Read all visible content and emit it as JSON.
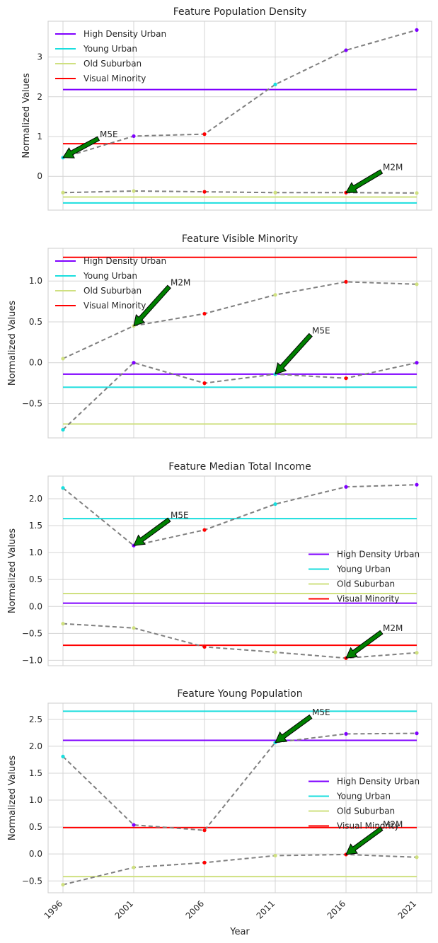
{
  "chart_data": [
    {
      "type": "line",
      "title": "Feature Population Density",
      "ylabel": "Normalized Values",
      "xlabel": "",
      "x": [
        1996,
        2001,
        2006,
        2011,
        2016,
        2021
      ],
      "ylim": [
        -0.85,
        3.9
      ],
      "yticks": [
        0,
        1,
        2,
        3
      ],
      "ytick_labels": [
        "0",
        "1",
        "2",
        "3"
      ],
      "legend_position": "top-left",
      "reference_lines": [
        {
          "name": "High Density Urban",
          "color": "#7f00ff",
          "value": 2.18
        },
        {
          "name": "Young Urban",
          "color": "#1adede",
          "value": -0.67
        },
        {
          "name": "Old Suburban",
          "color": "#cfe080",
          "value": -0.52
        },
        {
          "name": "Visual Minority",
          "color": "#ff0000",
          "value": 0.82
        }
      ],
      "series": [
        {
          "label": "M5E",
          "values": [
            0.47,
            1.01,
            1.06,
            2.31,
            3.17,
            3.68
          ],
          "point_colors": [
            "#1adede",
            "#7f00ff",
            "#ff0000",
            "#1adede",
            "#7f00ff",
            "#7f00ff"
          ]
        },
        {
          "label": "M2M",
          "values": [
            -0.41,
            -0.37,
            -0.39,
            -0.41,
            -0.41,
            -0.42
          ],
          "point_colors": [
            "#cfe080",
            "#cfe080",
            "#ff0000",
            "#cfe080",
            "#ff0000",
            "#cfe080"
          ]
        }
      ],
      "annotations": [
        {
          "text": "M5E",
          "x": 1996,
          "y": 0.47,
          "text_x": 1998.5,
          "text_y": 0.95
        },
        {
          "text": "M2M",
          "x": 2016,
          "y": -0.41,
          "text_x": 2018.5,
          "text_y": 0.12
        }
      ]
    },
    {
      "type": "line",
      "title": "Feature Visible Minority",
      "ylabel": "Normalized Values",
      "xlabel": "",
      "x": [
        1996,
        2001,
        2006,
        2011,
        2016,
        2021
      ],
      "ylim": [
        -0.92,
        1.4
      ],
      "yticks": [
        -0.5,
        0.0,
        0.5,
        1.0
      ],
      "ytick_labels": [
        "−0.5",
        "0.0",
        "0.5",
        "1.0"
      ],
      "legend_position": "top-left",
      "reference_lines": [
        {
          "name": "High Density Urban",
          "color": "#7f00ff",
          "value": -0.14
        },
        {
          "name": "Young Urban",
          "color": "#1adede",
          "value": -0.3
        },
        {
          "name": "Old Suburban",
          "color": "#cfe080",
          "value": -0.75
        },
        {
          "name": "Visual Minority",
          "color": "#ff0000",
          "value": 1.29
        }
      ],
      "series": [
        {
          "label": "M2M",
          "values": [
            0.05,
            0.45,
            0.6,
            0.83,
            0.99,
            0.96
          ],
          "point_colors": [
            "#cfe080",
            "#cfe080",
            "#ff0000",
            "#cfe080",
            "#ff0000",
            "#cfe080"
          ]
        },
        {
          "label": "M5E",
          "values": [
            -0.82,
            0.0,
            -0.25,
            -0.14,
            -0.19,
            0.0
          ],
          "point_colors": [
            "#1adede",
            "#7f00ff",
            "#ff0000",
            "#1adede",
            "#ff0000",
            "#7f00ff"
          ]
        }
      ],
      "annotations": [
        {
          "text": "M2M",
          "x": 2001,
          "y": 0.45,
          "text_x": 2003.5,
          "text_y": 0.93
        },
        {
          "text": "M5E",
          "x": 2011,
          "y": -0.14,
          "text_x": 2013.5,
          "text_y": 0.34
        }
      ]
    },
    {
      "type": "line",
      "title": "Feature Median Total Income",
      "ylabel": "Normalized Values",
      "xlabel": "",
      "x": [
        1996,
        2001,
        2006,
        2011,
        2016,
        2021
      ],
      "ylim": [
        -1.1,
        2.42
      ],
      "yticks": [
        -1.0,
        -0.5,
        0.0,
        0.5,
        1.0,
        1.5,
        2.0
      ],
      "ytick_labels": [
        "−1.0",
        "−0.5",
        "0.0",
        "0.5",
        "1.0",
        "1.5",
        "2.0"
      ],
      "legend_position": "center-right",
      "reference_lines": [
        {
          "name": "High Density Urban",
          "color": "#7f00ff",
          "value": 0.06
        },
        {
          "name": "Young Urban",
          "color": "#1adede",
          "value": 1.63
        },
        {
          "name": "Old Suburban",
          "color": "#cfe080",
          "value": 0.24
        },
        {
          "name": "Visual Minority",
          "color": "#ff0000",
          "value": -0.72
        }
      ],
      "series": [
        {
          "label": "M5E",
          "values": [
            2.2,
            1.13,
            1.42,
            1.9,
            2.22,
            2.26
          ],
          "point_colors": [
            "#1adede",
            "#7f00ff",
            "#ff0000",
            "#1adede",
            "#7f00ff",
            "#7f00ff"
          ]
        },
        {
          "label": "M2M",
          "values": [
            -0.32,
            -0.4,
            -0.75,
            -0.85,
            -0.96,
            -0.86
          ],
          "point_colors": [
            "#cfe080",
            "#cfe080",
            "#ff0000",
            "#cfe080",
            "#ff0000",
            "#cfe080"
          ]
        }
      ],
      "annotations": [
        {
          "text": "M5E",
          "x": 2001,
          "y": 1.13,
          "text_x": 2003.5,
          "text_y": 1.61
        },
        {
          "text": "M2M",
          "x": 2016,
          "y": -0.96,
          "text_x": 2018.5,
          "text_y": -0.48
        }
      ]
    },
    {
      "type": "line",
      "title": "Feature Young Population",
      "ylabel": "Normalized Values",
      "xlabel": "Year",
      "x": [
        1996,
        2001,
        2006,
        2011,
        2016,
        2021
      ],
      "xtick_labels": [
        "1996",
        "2001",
        "2006",
        "2011",
        "2016",
        "2021"
      ],
      "ylim": [
        -0.72,
        2.8
      ],
      "yticks": [
        -0.5,
        0.0,
        0.5,
        1.0,
        1.5,
        2.0,
        2.5
      ],
      "ytick_labels": [
        "−0.5",
        "0.0",
        "0.5",
        "1.0",
        "1.5",
        "2.0",
        "2.5"
      ],
      "legend_position": "center-right",
      "reference_lines": [
        {
          "name": "High Density Urban",
          "color": "#7f00ff",
          "value": 2.11
        },
        {
          "name": "Young Urban",
          "color": "#1adede",
          "value": 2.65
        },
        {
          "name": "Old Suburban",
          "color": "#cfe080",
          "value": -0.42
        },
        {
          "name": "Visual Minority",
          "color": "#ff0000",
          "value": 0.49
        }
      ],
      "series": [
        {
          "label": "M5E",
          "values": [
            1.81,
            0.54,
            0.44,
            2.07,
            2.23,
            2.24
          ],
          "point_colors": [
            "#1adede",
            "#7f00ff",
            "#ff0000",
            "#1adede",
            "#7f00ff",
            "#7f00ff"
          ]
        },
        {
          "label": "M2M",
          "values": [
            -0.57,
            -0.25,
            -0.16,
            -0.03,
            -0.01,
            -0.06
          ],
          "point_colors": [
            "#cfe080",
            "#cfe080",
            "#ff0000",
            "#cfe080",
            "#ff0000",
            "#cfe080"
          ]
        }
      ],
      "annotations": [
        {
          "text": "M5E",
          "x": 2011,
          "y": 2.07,
          "text_x": 2013.5,
          "text_y": 2.55
        },
        {
          "text": "M2M",
          "x": 2016,
          "y": -0.01,
          "text_x": 2018.5,
          "text_y": 0.47
        }
      ]
    }
  ]
}
